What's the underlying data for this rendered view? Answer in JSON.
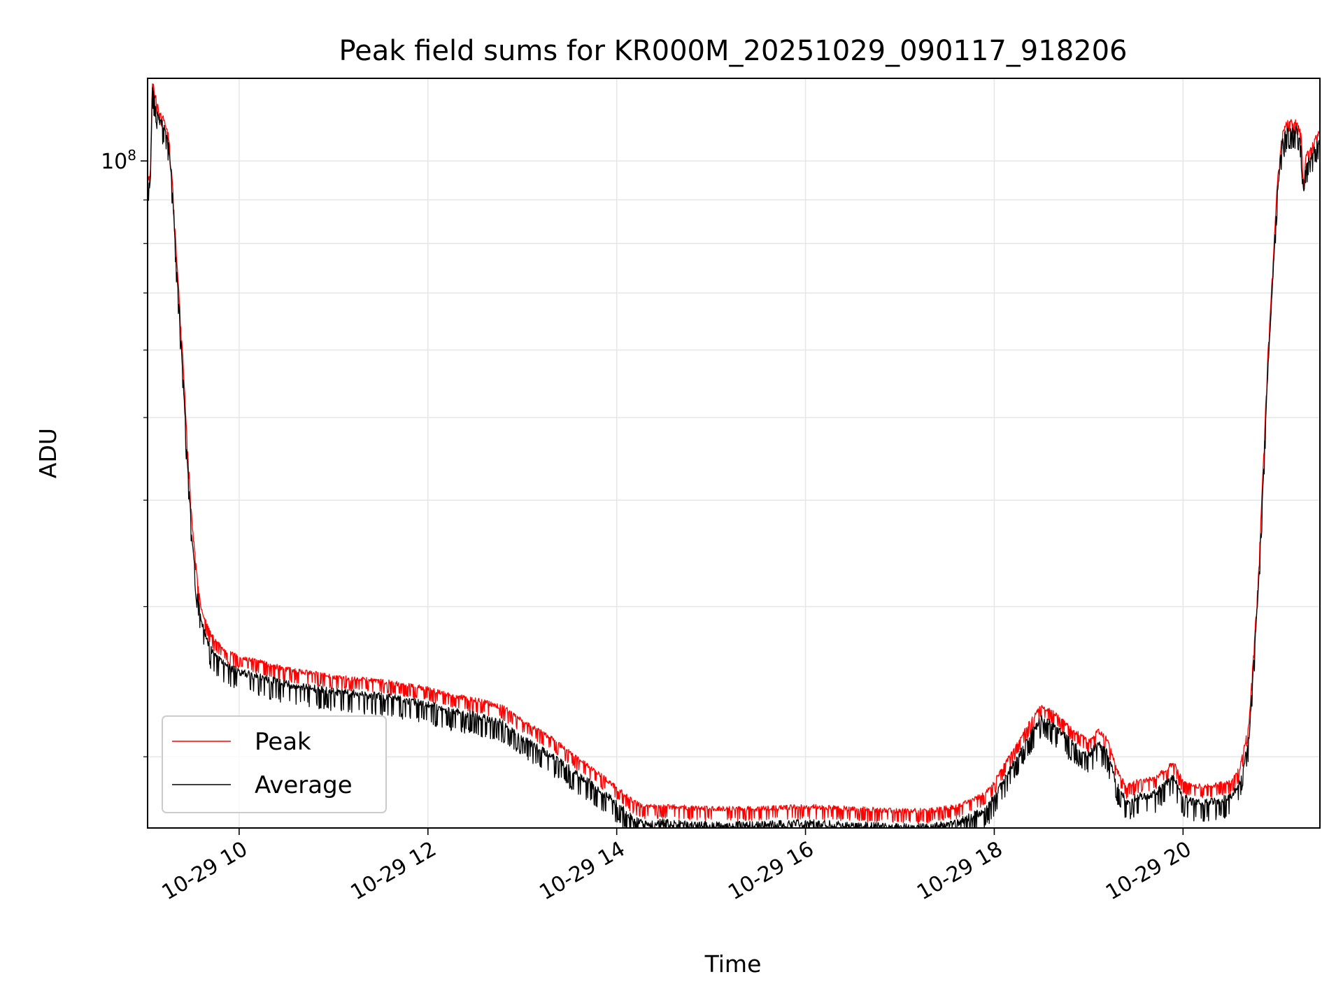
{
  "chart_data": {
    "type": "line",
    "title": "Peak field sums for KR000M_20251029_090117_918206",
    "xlabel": "Time",
    "ylabel": "ADU",
    "y_scale": "log",
    "xlim_hours": [
      9.03,
      21.45
    ],
    "ylim": [
      16500000,
      125000000
    ],
    "y_major_ticks": [
      {
        "value": 100000000,
        "base": "10",
        "exp": "8"
      }
    ],
    "y_minor_ticks": [
      20000000,
      30000000,
      40000000,
      50000000,
      60000000,
      70000000,
      80000000,
      90000000
    ],
    "x_ticks": [
      {
        "hour": 10,
        "label": "10-29 10"
      },
      {
        "hour": 12,
        "label": "10-29 12"
      },
      {
        "hour": 14,
        "label": "10-29 14"
      },
      {
        "hour": 16,
        "label": "10-29 16"
      },
      {
        "hour": 18,
        "label": "10-29 18"
      },
      {
        "hour": 20,
        "label": "10-29 20"
      }
    ],
    "grid": true,
    "legend_position": "lower-left",
    "series": [
      {
        "name": "Peak",
        "color": "#ff0000",
        "noise": 0.018,
        "x": [
          9.03,
          9.06,
          9.08,
          9.1,
          9.15,
          9.2,
          9.25,
          9.28,
          9.3,
          9.33,
          9.4,
          9.45,
          9.5,
          9.55,
          9.6,
          9.7,
          9.8,
          9.9,
          10.0,
          10.5,
          11.0,
          11.5,
          12.0,
          12.2,
          12.5,
          12.8,
          13.0,
          13.3,
          13.6,
          13.9,
          14.1,
          14.2,
          14.3,
          14.5,
          15.0,
          15.5,
          16.0,
          16.5,
          17.0,
          17.3,
          17.6,
          17.9,
          18.0,
          18.2,
          18.4,
          18.5,
          18.6,
          18.8,
          19.0,
          19.1,
          19.2,
          19.3,
          19.4,
          19.5,
          19.7,
          19.8,
          19.9,
          20.0,
          20.1,
          20.3,
          20.5,
          20.6,
          20.7,
          20.8,
          20.9,
          21.0,
          21.05,
          21.1,
          21.2,
          21.25,
          21.28,
          21.3,
          21.35,
          21.4,
          21.45
        ],
        "y": [
          96000000,
          97000000,
          125000000,
          122000000,
          115000000,
          113000000,
          108000000,
          100000000,
          92000000,
          80000000,
          60000000,
          47000000,
          38000000,
          33000000,
          30000000,
          28000000,
          27200000,
          26600000,
          26400000,
          25500000,
          25000000,
          24700000,
          24200000,
          23800000,
          23500000,
          23000000,
          22200000,
          21200000,
          20000000,
          18900000,
          18100000,
          17800000,
          17600000,
          17600000,
          17500000,
          17500000,
          17600000,
          17500000,
          17400000,
          17400000,
          17600000,
          18200000,
          18800000,
          20500000,
          22300000,
          23100000,
          22800000,
          21800000,
          21000000,
          21600000,
          21100000,
          19400000,
          18600000,
          18800000,
          19000000,
          19400000,
          19800000,
          18800000,
          18600000,
          18600000,
          18800000,
          19500000,
          22000000,
          33000000,
          60000000,
          95000000,
          108000000,
          112000000,
          112000000,
          108000000,
          94000000,
          102000000,
          104000000,
          107000000,
          109000000
        ]
      },
      {
        "name": "Average",
        "color": "#000000",
        "noise": 0.028,
        "x": [
          9.03,
          9.06,
          9.08,
          9.1,
          9.15,
          9.2,
          9.25,
          9.28,
          9.3,
          9.33,
          9.4,
          9.45,
          9.5,
          9.55,
          9.6,
          9.7,
          9.8,
          9.9,
          10.0,
          10.5,
          11.0,
          11.5,
          12.0,
          12.2,
          12.5,
          12.8,
          13.0,
          13.3,
          13.6,
          13.9,
          14.1,
          14.2,
          14.3,
          14.5,
          15.0,
          15.5,
          16.0,
          16.5,
          17.0,
          17.3,
          17.6,
          17.9,
          18.0,
          18.2,
          18.4,
          18.5,
          18.6,
          18.8,
          19.0,
          19.1,
          19.2,
          19.3,
          19.4,
          19.5,
          19.7,
          19.8,
          19.9,
          20.0,
          20.1,
          20.3,
          20.5,
          20.6,
          20.7,
          20.8,
          20.9,
          21.0,
          21.05,
          21.1,
          21.2,
          21.25,
          21.28,
          21.3,
          21.35,
          21.4,
          21.45
        ],
        "y": [
          94000000,
          95000000,
          123000000,
          120000000,
          113000000,
          111000000,
          106000000,
          98000000,
          90000000,
          78000000,
          58000000,
          45000000,
          36500000,
          32000000,
          29000000,
          27000000,
          26200000,
          25700000,
          25400000,
          24600000,
          24100000,
          23800000,
          23300000,
          22900000,
          22600000,
          22100000,
          21300000,
          20300000,
          19200000,
          18200000,
          17400000,
          17000000,
          16900000,
          16900000,
          16800000,
          16800000,
          16900000,
          16800000,
          16700000,
          16700000,
          16900000,
          17500000,
          18100000,
          19800000,
          21600000,
          22400000,
          22100000,
          21100000,
          20300000,
          20900000,
          20400000,
          18700000,
          17900000,
          18100000,
          18300000,
          18700000,
          19100000,
          18100000,
          17900000,
          17900000,
          18100000,
          18800000,
          21300000,
          32000000,
          58000000,
          93000000,
          106000000,
          110000000,
          110000000,
          106000000,
          92000000,
          100000000,
          102000000,
          105000000,
          107000000
        ]
      }
    ]
  }
}
